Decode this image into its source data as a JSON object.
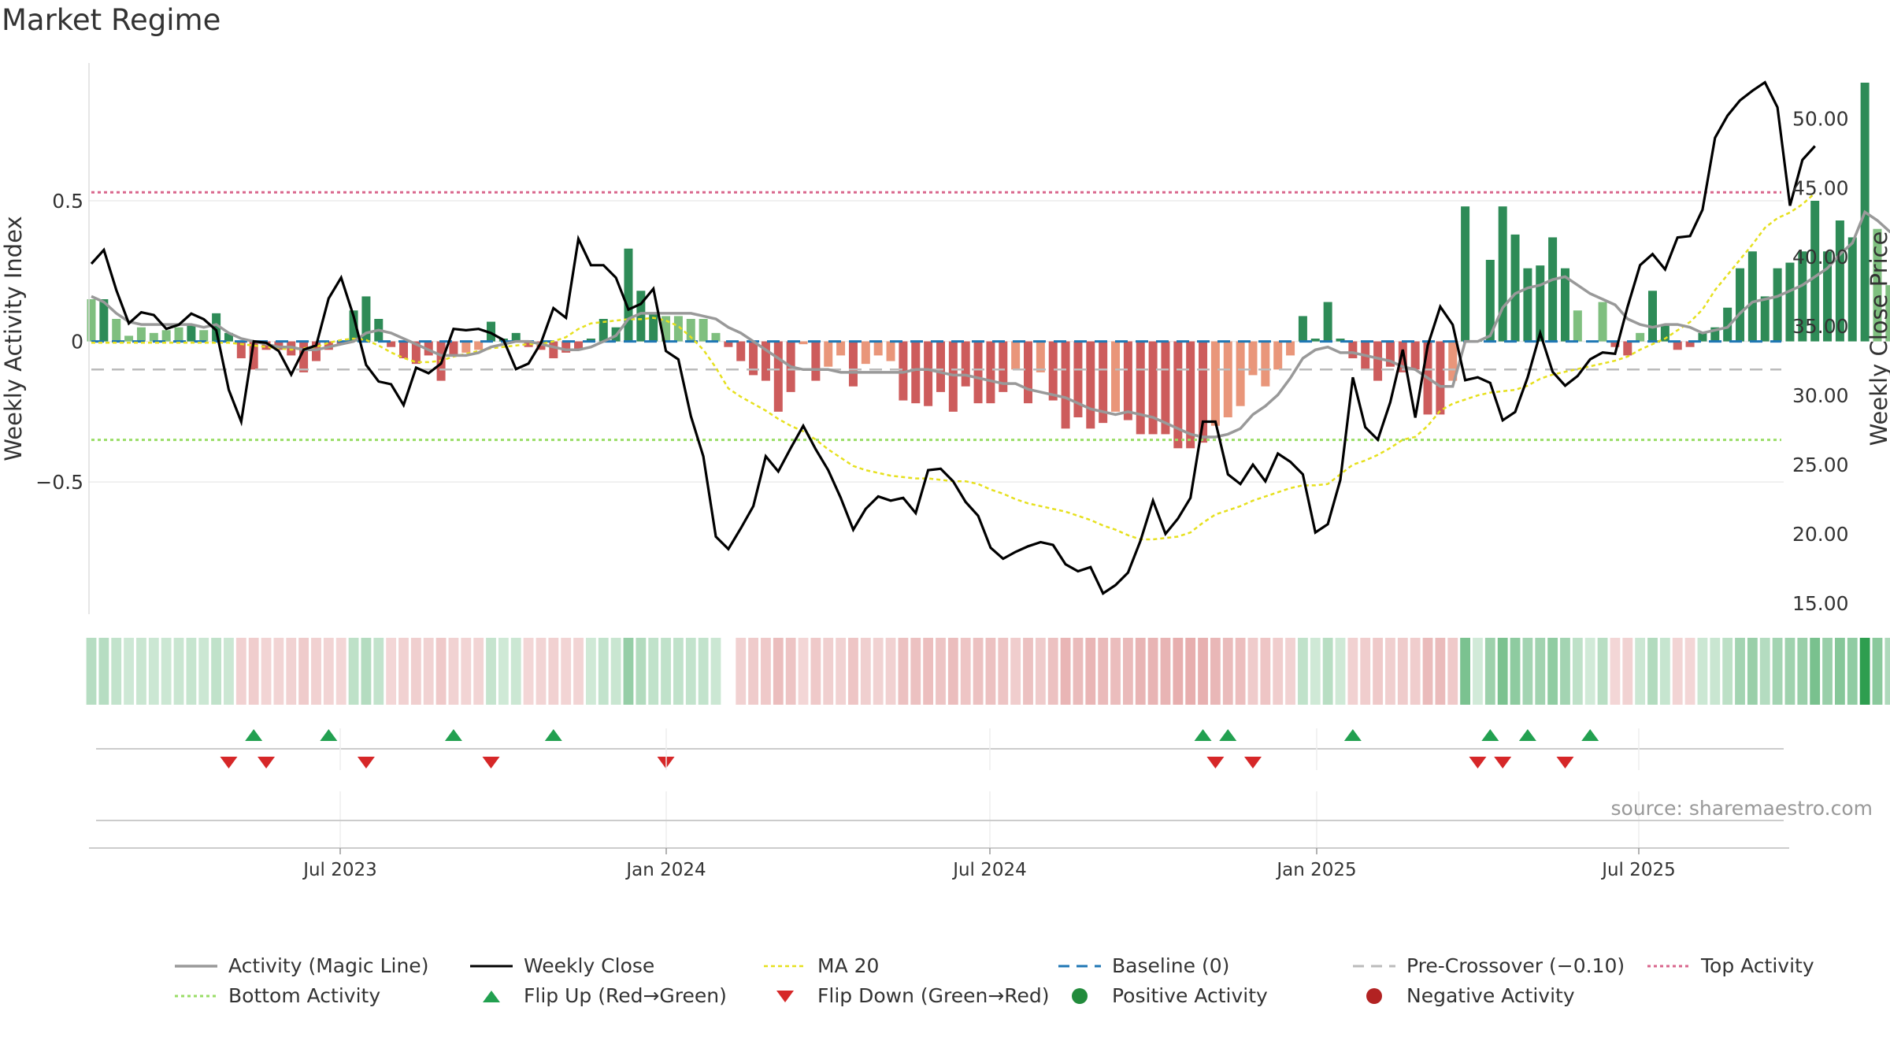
{
  "title": "Market Regime",
  "source": "source: sharemaestro.com",
  "colors": {
    "pos_dark": "#2e8b57",
    "pos_light": "#7fbf7f",
    "neg_dark": "#cd5c5c",
    "neg_light": "#e9967a",
    "magic": "#999999",
    "close": "#000000",
    "ma": "#e6e01e",
    "baseline": "#1f77b4",
    "pre": "#bbbbbb",
    "top": "#d9668c",
    "bottom": "#99dd66",
    "flip_up": "#22a050",
    "flip_down": "#d62728"
  },
  "chart_data": {
    "type": "bar",
    "ylabel": "Weekly Activity Index",
    "y2label": "Weekly Close Price",
    "ylim": [
      -0.97,
      0.99
    ],
    "y2lim": [
      14.2,
      54.0
    ],
    "yticks": [
      {
        "v": 0.5,
        "label": "0.5"
      },
      {
        "v": 0,
        "label": "0"
      },
      {
        "v": -0.5,
        "label": "−0.5"
      }
    ],
    "y2ticks": [
      {
        "v": 50,
        "label": "50.00"
      },
      {
        "v": 45,
        "label": "45.00"
      },
      {
        "v": 40,
        "label": "40.00"
      },
      {
        "v": 35,
        "label": "35.00"
      },
      {
        "v": 30,
        "label": "30.00"
      },
      {
        "v": 25,
        "label": "25.00"
      },
      {
        "v": 20,
        "label": "20.00"
      },
      {
        "v": 15,
        "label": "15.00"
      }
    ],
    "xticks": [
      "Jul 2023",
      "Jan 2024",
      "Jul 2024",
      "Jan 2025",
      "Jul 2025"
    ],
    "reference_lines": {
      "baseline": 0,
      "pre_crossover": -0.1,
      "top": 0.53,
      "bottom": -0.35
    },
    "series_names": {
      "magic": "Activity (Magic Line)",
      "close": "Weekly Close",
      "ma": "MA 20",
      "baseline": "Baseline (0)",
      "pre": "Pre-Crossover (−0.10)",
      "top": "Top Activity",
      "bottom": "Bottom Activity",
      "flip_up": "Flip Up (Red→Green)",
      "flip_down": "Flip Down (Green→Red)",
      "pos": "Positive Activity",
      "neg": "Negative Activity"
    },
    "activity": [
      0.15,
      0.15,
      0.08,
      0.02,
      0.05,
      0.03,
      0.04,
      0.05,
      0.06,
      0.04,
      0.1,
      0.03,
      -0.06,
      -0.1,
      -0.03,
      -0.03,
      -0.05,
      -0.11,
      -0.07,
      -0.03,
      -0.01,
      0.11,
      0.16,
      0.08,
      -0.02,
      -0.06,
      -0.08,
      -0.05,
      -0.14,
      -0.05,
      -0.04,
      -0.03,
      0.07,
      0.01,
      0.03,
      -0.02,
      -0.03,
      -0.06,
      -0.04,
      -0.03,
      0.01,
      0.08,
      0.05,
      0.33,
      0.18,
      0.1,
      0.09,
      0.09,
      0.08,
      0.08,
      0.03,
      -0.02,
      -0.07,
      -0.12,
      -0.14,
      -0.25,
      -0.18,
      -0.01,
      -0.14,
      -0.09,
      -0.05,
      -0.16,
      -0.08,
      -0.05,
      -0.07,
      -0.21,
      -0.22,
      -0.23,
      -0.18,
      -0.25,
      -0.16,
      -0.22,
      -0.22,
      -0.18,
      -0.1,
      -0.22,
      -0.11,
      -0.21,
      -0.31,
      -0.27,
      -0.31,
      -0.29,
      -0.25,
      -0.28,
      -0.33,
      -0.33,
      -0.33,
      -0.38,
      -0.38,
      -0.36,
      -0.3,
      -0.27,
      -0.23,
      -0.12,
      -0.16,
      -0.1,
      -0.05,
      0.09,
      0.01,
      0.14,
      0.01,
      -0.06,
      -0.1,
      -0.14,
      -0.09,
      -0.11,
      -0.1,
      -0.26,
      -0.26,
      -0.14,
      0.48,
      0.0,
      0.29,
      0.48,
      0.38,
      0.26,
      0.27,
      0.37,
      0.26,
      0.11,
      0.0,
      0.14,
      -0.02,
      -0.05,
      0.03,
      0.18,
      0.06,
      -0.03,
      -0.02,
      0.03,
      0.05,
      0.12,
      0.26,
      0.32,
      0.16,
      0.26,
      0.28,
      0.32,
      0.5,
      0.32,
      0.43,
      0.37,
      0.92,
      0.4,
      0.2,
      0.27,
      0.36
    ],
    "magic": [
      0.16,
      0.14,
      0.1,
      0.07,
      0.06,
      0.06,
      0.06,
      0.06,
      0.06,
      0.05,
      0.06,
      0.03,
      0.01,
      0.0,
      -0.01,
      -0.02,
      -0.02,
      -0.03,
      -0.03,
      -0.02,
      -0.01,
      0.0,
      0.03,
      0.04,
      0.03,
      0.01,
      -0.01,
      -0.03,
      -0.05,
      -0.05,
      -0.05,
      -0.04,
      -0.02,
      -0.01,
      0.0,
      0.0,
      -0.01,
      -0.02,
      -0.03,
      -0.03,
      -0.02,
      0.0,
      0.02,
      0.08,
      0.1,
      0.1,
      0.1,
      0.1,
      0.1,
      0.09,
      0.08,
      0.05,
      0.03,
      0.0,
      -0.03,
      -0.06,
      -0.09,
      -0.1,
      -0.1,
      -0.1,
      -0.11,
      -0.11,
      -0.11,
      -0.11,
      -0.11,
      -0.11,
      -0.1,
      -0.1,
      -0.11,
      -0.12,
      -0.12,
      -0.13,
      -0.14,
      -0.15,
      -0.15,
      -0.17,
      -0.18,
      -0.19,
      -0.2,
      -0.22,
      -0.24,
      -0.25,
      -0.26,
      -0.25,
      -0.26,
      -0.27,
      -0.29,
      -0.31,
      -0.33,
      -0.34,
      -0.34,
      -0.33,
      -0.31,
      -0.26,
      -0.23,
      -0.19,
      -0.13,
      -0.06,
      -0.03,
      -0.02,
      -0.04,
      -0.04,
      -0.05,
      -0.06,
      -0.07,
      -0.09,
      -0.1,
      -0.13,
      -0.16,
      -0.16,
      0.0,
      0.0,
      0.02,
      0.12,
      0.17,
      0.19,
      0.2,
      0.22,
      0.23,
      0.2,
      0.17,
      0.15,
      0.13,
      0.08,
      0.06,
      0.05,
      0.06,
      0.06,
      0.05,
      0.03,
      0.04,
      0.05,
      0.1,
      0.14,
      0.15,
      0.16,
      0.18,
      0.2,
      0.23,
      0.26,
      0.31,
      0.35,
      0.46,
      0.43,
      0.39,
      0.37,
      0.37
    ],
    "close": [
      39.5,
      40.5,
      37.6,
      35.2,
      36.0,
      35.8,
      34.8,
      35.1,
      35.9,
      35.5,
      34.7,
      30.4,
      28.1,
      33.9,
      33.8,
      33.2,
      31.5,
      33.3,
      33.6,
      37.0,
      38.5,
      35.7,
      32.2,
      31.0,
      30.8,
      29.3,
      32.0,
      31.6,
      32.3,
      34.8,
      34.7,
      34.8,
      34.5,
      34.0,
      31.9,
      32.3,
      33.8,
      36.3,
      35.6,
      41.3,
      39.4,
      39.4,
      38.5,
      36.2,
      36.6,
      37.7,
      33.2,
      32.6,
      28.5,
      25.6,
      19.8,
      18.9,
      20.4,
      22.0,
      25.6,
      24.5,
      26.2,
      27.8,
      26.1,
      24.6,
      22.6,
      20.3,
      21.8,
      22.7,
      22.4,
      22.6,
      21.5,
      24.6,
      24.7,
      23.8,
      22.3,
      21.3,
      19.0,
      18.2,
      18.7,
      19.1,
      19.4,
      19.2,
      17.8,
      17.3,
      17.6,
      15.7,
      16.3,
      17.2,
      19.5,
      22.4,
      20.0,
      21.1,
      22.6,
      28.1,
      28.1,
      24.3,
      23.6,
      25.0,
      23.8,
      25.8,
      25.2,
      24.3,
      20.1,
      20.7,
      23.9,
      31.3,
      27.7,
      26.8,
      29.5,
      33.3,
      28.4,
      33.6,
      36.4,
      35.1,
      31.1,
      31.3,
      30.9,
      28.2,
      28.8,
      31.3,
      34.5,
      31.7,
      30.7,
      31.4,
      32.6,
      33.1,
      33.0,
      36.4,
      39.4,
      40.2,
      39.1,
      41.4,
      41.5,
      43.4,
      48.6,
      50.2,
      51.3,
      52.0,
      52.6,
      50.8,
      43.7,
      47.0,
      48.0
    ],
    "ma": [
      33.8,
      33.8,
      33.8,
      33.8,
      33.8,
      33.8,
      33.8,
      33.8,
      33.8,
      33.8,
      33.8,
      33.8,
      33.7,
      33.6,
      33.5,
      33.4,
      33.3,
      33.4,
      33.5,
      33.8,
      34.0,
      34.1,
      34.0,
      33.6,
      33.1,
      32.7,
      32.4,
      32.4,
      32.5,
      32.8,
      33.0,
      33.2,
      33.4,
      33.5,
      33.6,
      33.7,
      33.7,
      33.9,
      34.2,
      34.8,
      35.2,
      35.3,
      35.4,
      35.5,
      35.5,
      35.6,
      35.4,
      35.0,
      34.2,
      33.3,
      32.0,
      30.5,
      29.9,
      29.4,
      28.9,
      28.3,
      27.8,
      27.4,
      26.8,
      26.1,
      25.5,
      24.9,
      24.6,
      24.4,
      24.2,
      24.1,
      24.0,
      24.0,
      23.9,
      23.8,
      23.8,
      23.6,
      23.2,
      22.9,
      22.5,
      22.2,
      22.0,
      21.8,
      21.6,
      21.3,
      21.0,
      20.6,
      20.3,
      19.9,
      19.6,
      19.6,
      19.7,
      19.8,
      20.1,
      20.8,
      21.4,
      21.7,
      22.0,
      22.4,
      22.7,
      23.0,
      23.3,
      23.5,
      23.5,
      23.6,
      24.3,
      25.0,
      25.3,
      25.7,
      26.2,
      26.8,
      27.0,
      27.8,
      28.9,
      29.4,
      29.7,
      30.0,
      30.2,
      30.3,
      30.4,
      30.7,
      31.2,
      31.5,
      31.7,
      31.9,
      32.1,
      32.3,
      32.5,
      32.8,
      33.3,
      33.7,
      34.1,
      34.7,
      35.3,
      36.2,
      37.6,
      38.7,
      39.8,
      40.9,
      42.1,
      42.8,
      43.2,
      43.8,
      44.6
    ],
    "flips_up": [
      13,
      19,
      29,
      37,
      89,
      91,
      101,
      112,
      115,
      120
    ],
    "flips_down": [
      11,
      14,
      22,
      32,
      46,
      90,
      93,
      111,
      113,
      118
    ]
  },
  "legend": [
    {
      "key": "magic",
      "label": "Activity (Magic Line)"
    },
    {
      "key": "close",
      "label": "Weekly Close"
    },
    {
      "key": "ma",
      "label": "MA 20"
    },
    {
      "key": "baseline",
      "label": "Baseline (0)"
    },
    {
      "key": "pre",
      "label": "Pre-Crossover (−0.10)"
    },
    {
      "key": "top",
      "label": "Top Activity"
    },
    {
      "key": "bottom",
      "label": "Bottom Activity"
    },
    {
      "key": "flip_up",
      "label": "Flip Up (Red→Green)"
    },
    {
      "key": "flip_down",
      "label": "Flip Down (Green→Red)"
    },
    {
      "key": "pos",
      "label": "Positive Activity"
    },
    {
      "key": "neg",
      "label": "Negative Activity"
    }
  ]
}
